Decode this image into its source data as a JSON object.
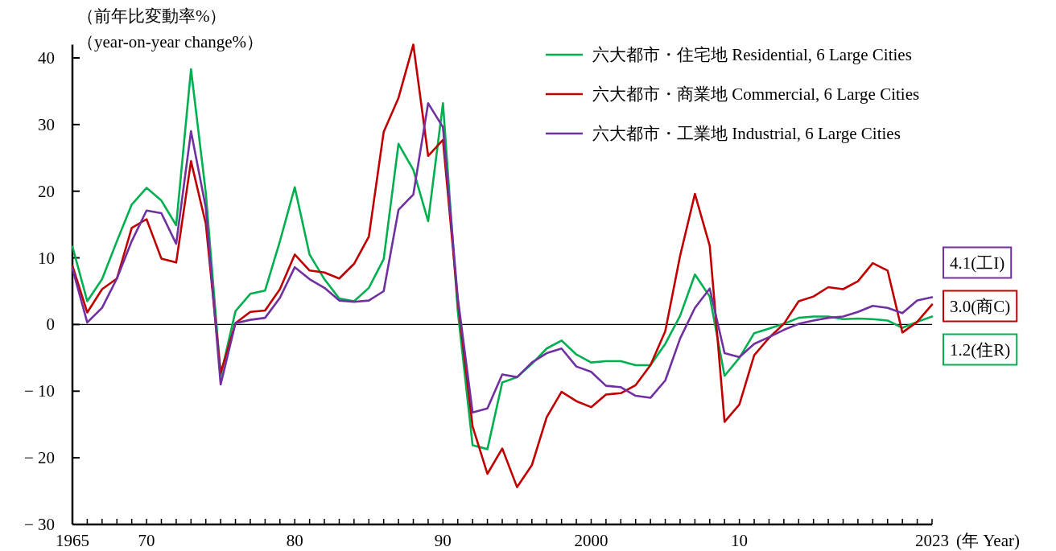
{
  "chart_data": {
    "type": "line",
    "ylabel": "（前年比変動率%）",
    "xlabel": "(年 Year)",
    "x": [
      1965,
      1966,
      1967,
      1968,
      1969,
      1970,
      1971,
      1972,
      1973,
      1974,
      1975,
      1976,
      1977,
      1978,
      1979,
      1980,
      1981,
      1982,
      1983,
      1984,
      1985,
      1986,
      1987,
      1988,
      1989,
      1990,
      1991,
      1992,
      1993,
      1994,
      1995,
      1996,
      1997,
      1998,
      1999,
      2000,
      2001,
      2002,
      2003,
      2004,
      2005,
      2006,
      2007,
      2008,
      2009,
      2010,
      2011,
      2012,
      2013,
      2014,
      2015,
      2016,
      2017,
      2018,
      2019,
      2020,
      2021,
      2022,
      2023
    ],
    "series": [
      {
        "name": "六大都市・住宅地 Residential, 6 Large Cities",
        "color": "#00b050",
        "values": [
          11.7,
          3.5,
          6.8,
          12.5,
          18.0,
          20.5,
          18.6,
          14.9,
          38.3,
          19.7,
          -7.7,
          2.0,
          4.6,
          5.1,
          12.5,
          20.6,
          10.5,
          6.8,
          3.9,
          3.5,
          5.5,
          9.8,
          27.1,
          23.2,
          15.5,
          33.2,
          2.0,
          -18.1,
          -18.7,
          -8.7,
          -7.9,
          -5.9,
          -3.6,
          -2.4,
          -4.5,
          -5.7,
          -5.5,
          -5.5,
          -6.1,
          -6.1,
          -2.9,
          1.3,
          7.5,
          4.2,
          -7.7,
          -5.0,
          -1.3,
          -0.6,
          0.1,
          1.0,
          1.2,
          1.2,
          0.8,
          0.9,
          0.8,
          0.6,
          -0.5,
          0.4,
          1.2
        ]
      },
      {
        "name": "六大都市・商業地 Commercial, 6 Large Cities",
        "color": "#c00000",
        "values": [
          8.8,
          1.8,
          5.3,
          6.9,
          14.5,
          15.8,
          9.9,
          9.3,
          24.5,
          15.1,
          -7.3,
          0.2,
          1.9,
          2.1,
          5.3,
          10.5,
          8.1,
          7.8,
          6.9,
          9.1,
          13.2,
          28.9,
          34.0,
          42.0,
          25.3,
          27.7,
          3.5,
          -15.3,
          -22.4,
          -18.6,
          -24.4,
          -21.1,
          -13.9,
          -10.1,
          -11.5,
          -12.4,
          -10.5,
          -10.3,
          -9.1,
          -6.1,
          -1.0,
          10.3,
          19.6,
          11.8,
          -14.6,
          -12.0,
          -4.6,
          -2.0,
          0.1,
          3.5,
          4.2,
          5.6,
          5.3,
          6.5,
          9.2,
          8.1,
          -1.2,
          0.4,
          3.0
        ]
      },
      {
        "name": "六大都市・工業地 Industrial, 6 Large Cities",
        "color": "#7030a0",
        "values": [
          8.4,
          0.3,
          2.5,
          6.9,
          12.5,
          17.1,
          16.7,
          12.1,
          29.0,
          17.5,
          -9.0,
          0.2,
          0.7,
          1.0,
          4.0,
          8.6,
          6.8,
          5.5,
          3.6,
          3.4,
          3.6,
          5.0,
          17.2,
          19.5,
          33.2,
          29.6,
          4.0,
          -13.2,
          -12.6,
          -7.5,
          -7.9,
          -5.7,
          -4.3,
          -3.6,
          -6.3,
          -7.1,
          -9.2,
          -9.4,
          -10.7,
          -11.0,
          -8.4,
          -2.1,
          2.5,
          5.4,
          -4.3,
          -4.9,
          -2.9,
          -1.9,
          -0.8,
          0.1,
          0.6,
          1.0,
          1.2,
          1.9,
          2.8,
          2.5,
          1.7,
          3.6,
          4.1
        ]
      }
    ],
    "annotations": [
      "（year-on-year change%）",
      "1.2(住R)",
      "3.0(商C)",
      "4.1(工I)"
    ],
    "xlim": [
      1965,
      2023
    ],
    "xticks": [
      {
        "value": 1965,
        "label": "1965"
      },
      {
        "value": 1966,
        "label": null
      },
      {
        "value": 1967,
        "label": null
      },
      {
        "value": 1968,
        "label": null
      },
      {
        "value": 1969,
        "label": null
      },
      {
        "value": 1970,
        "label": "70"
      },
      {
        "value": 1971,
        "label": null
      },
      {
        "value": 1972,
        "label": null
      },
      {
        "value": 1973,
        "label": null
      },
      {
        "value": 1974,
        "label": null
      },
      {
        "value": 1975,
        "label": null
      },
      {
        "value": 1976,
        "label": null
      },
      {
        "value": 1977,
        "label": null
      },
      {
        "value": 1978,
        "label": null
      },
      {
        "value": 1979,
        "label": null
      },
      {
        "value": 1980,
        "label": "80"
      },
      {
        "value": 1981,
        "label": null
      },
      {
        "value": 1982,
        "label": null
      },
      {
        "value": 1983,
        "label": null
      },
      {
        "value": 1984,
        "label": null
      },
      {
        "value": 1985,
        "label": null
      },
      {
        "value": 1986,
        "label": null
      },
      {
        "value": 1987,
        "label": null
      },
      {
        "value": 1988,
        "label": null
      },
      {
        "value": 1989,
        "label": null
      },
      {
        "value": 1990,
        "label": "90"
      },
      {
        "value": 1991,
        "label": null
      },
      {
        "value": 1992,
        "label": null
      },
      {
        "value": 1993,
        "label": null
      },
      {
        "value": 1994,
        "label": null
      },
      {
        "value": 1995,
        "label": null
      },
      {
        "value": 1996,
        "label": null
      },
      {
        "value": 1997,
        "label": null
      },
      {
        "value": 1998,
        "label": null
      },
      {
        "value": 1999,
        "label": null
      },
      {
        "value": 2000,
        "label": "2000"
      },
      {
        "value": 2001,
        "label": null
      },
      {
        "value": 2002,
        "label": null
      },
      {
        "value": 2003,
        "label": null
      },
      {
        "value": 2004,
        "label": null
      },
      {
        "value": 2005,
        "label": null
      },
      {
        "value": 2006,
        "label": null
      },
      {
        "value": 2007,
        "label": null
      },
      {
        "value": 2008,
        "label": null
      },
      {
        "value": 2009,
        "label": null
      },
      {
        "value": 2010,
        "label": "10"
      },
      {
        "value": 2011,
        "label": null
      },
      {
        "value": 2012,
        "label": null
      },
      {
        "value": 2013,
        "label": null
      },
      {
        "value": 2014,
        "label": null
      },
      {
        "value": 2015,
        "label": null
      },
      {
        "value": 2016,
        "label": null
      },
      {
        "value": 2017,
        "label": null
      },
      {
        "value": 2018,
        "label": null
      },
      {
        "value": 2019,
        "label": null
      },
      {
        "value": 2020,
        "label": null
      },
      {
        "value": 2021,
        "label": null
      },
      {
        "value": 2022,
        "label": null
      },
      {
        "value": 2023,
        "label": "2023"
      }
    ],
    "ylim": [
      -30,
      42
    ],
    "yticks": [
      40,
      30,
      20,
      10,
      0,
      {
        "value": -10,
        "label": "− 10"
      },
      {
        "value": -20,
        "label": "− 20"
      },
      {
        "value": -30,
        "label": "− 30"
      }
    ],
    "ref_lines": [
      {
        "axis": "y",
        "value": 0,
        "color": "#000000"
      }
    ],
    "legend": "top right",
    "grid": false,
    "marker": "none",
    "line_style": "solid"
  }
}
